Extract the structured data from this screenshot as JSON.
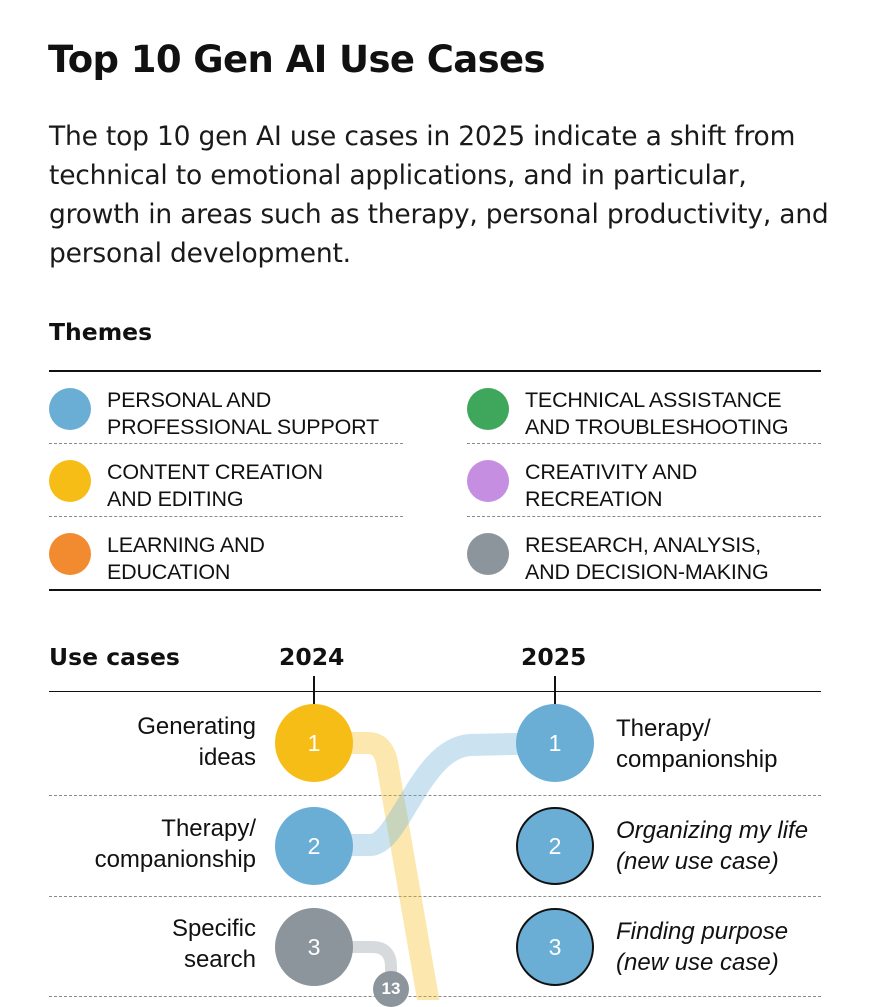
{
  "title": "Top 10 Gen AI Use Cases",
  "subtitle": "The top 10 gen AI use cases in 2025 indicate a shift from technical to emotional applications, and in particular, growth in areas such as therapy, personal productivity, and personal development.",
  "themes": {
    "heading": "Themes",
    "items": [
      {
        "line1": "PERSONAL AND",
        "line2": "PROFESSIONAL SUPPORT",
        "color": "#6aaed6"
      },
      {
        "line1": "CONTENT CREATION",
        "line2": "AND EDITING",
        "color": "#f6bd16"
      },
      {
        "line1": "LEARNING AND",
        "line2": "EDUCATION",
        "color": "#f28a30"
      },
      {
        "line1": "TECHNICAL ASSISTANCE",
        "line2": "AND TROUBLESHOOTING",
        "color": "#3fa75c"
      },
      {
        "line1": "CREATIVITY AND",
        "line2": "RECREATION",
        "color": "#c68ee0"
      },
      {
        "line1": "RESEARCH, ANALYSIS,",
        "line2": "AND DECISION-MAKING",
        "color": "#8c959c"
      }
    ]
  },
  "chart_data": {
    "type": "slope",
    "column_header": "Use cases",
    "years": [
      "2024",
      "2025"
    ],
    "rows_2024": [
      {
        "rank": 1,
        "label_line1": "Generating",
        "label_line2": "ideas",
        "theme": "CONTENT CREATION AND EDITING",
        "color": "#f6bd16",
        "rank_2025_shown": null
      },
      {
        "rank": 2,
        "label_line1": "Therapy/",
        "label_line2": "companionship",
        "theme": "PERSONAL AND PROFESSIONAL SUPPORT",
        "color": "#6aaed6",
        "rank_2025_shown": 1
      },
      {
        "rank": 3,
        "label_line1": "Specific",
        "label_line2": "search",
        "theme": "RESEARCH, ANALYSIS, AND DECISION-MAKING",
        "color": "#8c959c",
        "rank_2025_shown": 13
      }
    ],
    "rows_2025": [
      {
        "rank": 1,
        "label_line1": "Therapy/",
        "label_line2": "companionship",
        "new": false,
        "color": "#6aaed6"
      },
      {
        "rank": 2,
        "label_line1": "Organizing my life",
        "label_line2": "(new use case)",
        "new": true,
        "color": "#6aaed6"
      },
      {
        "rank": 3,
        "label_line1": "Finding purpose",
        "label_line2": "(new use case)",
        "new": true,
        "color": "#6aaed6"
      }
    ],
    "offscreen_rank_marker": "13"
  }
}
